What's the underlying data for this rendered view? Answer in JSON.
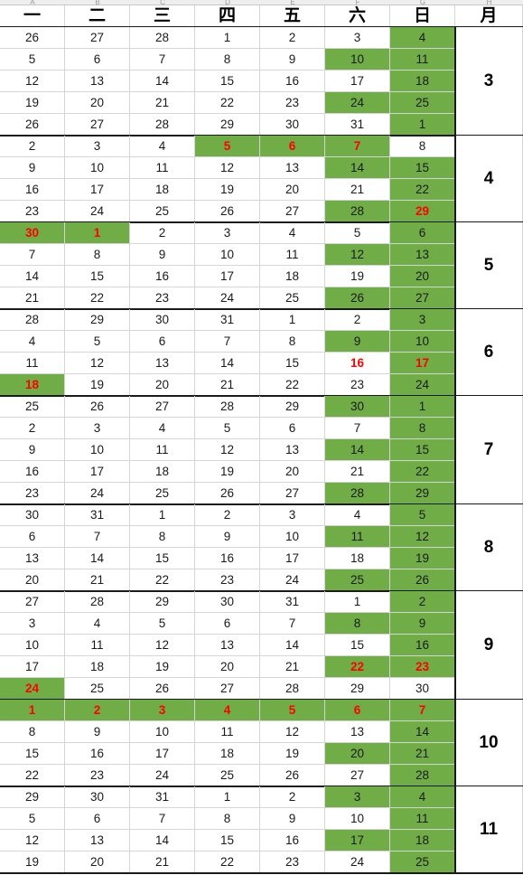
{
  "column_letters": [
    "A",
    "B",
    "C",
    "D",
    "E",
    "F",
    "G",
    "H"
  ],
  "weekday_headers": [
    "一",
    "二",
    "三",
    "四",
    "五",
    "六",
    "日"
  ],
  "month_header": "月",
  "colors": {
    "workday_green": "#70ad47",
    "holiday_red": "#ff0000"
  },
  "blocks": [
    {
      "month": "3",
      "rows": [
        {
          "days": [
            "26",
            "27",
            "28",
            "1",
            "2",
            "3",
            "4"
          ],
          "green": [
            6
          ],
          "holiday": []
        },
        {
          "days": [
            "5",
            "6",
            "7",
            "8",
            "9",
            "10",
            "11"
          ],
          "green": [
            5,
            6
          ],
          "holiday": []
        },
        {
          "days": [
            "12",
            "13",
            "14",
            "15",
            "16",
            "17",
            "18"
          ],
          "green": [
            6
          ],
          "holiday": []
        },
        {
          "days": [
            "19",
            "20",
            "21",
            "22",
            "23",
            "24",
            "25"
          ],
          "green": [
            5,
            6
          ],
          "holiday": []
        },
        {
          "days": [
            "26",
            "27",
            "28",
            "29",
            "30",
            "31",
            "1"
          ],
          "green": [
            6
          ],
          "holiday": []
        }
      ]
    },
    {
      "month": "4",
      "rows": [
        {
          "days": [
            "2",
            "3",
            "4",
            "5",
            "6",
            "7",
            "8"
          ],
          "green": [
            3,
            4,
            5
          ],
          "holiday": [
            3,
            4,
            5
          ]
        },
        {
          "days": [
            "9",
            "10",
            "11",
            "12",
            "13",
            "14",
            "15"
          ],
          "green": [
            5,
            6
          ],
          "holiday": []
        },
        {
          "days": [
            "16",
            "17",
            "18",
            "19",
            "20",
            "21",
            "22"
          ],
          "green": [
            6
          ],
          "holiday": []
        },
        {
          "days": [
            "23",
            "24",
            "25",
            "26",
            "27",
            "28",
            "29"
          ],
          "green": [
            5,
            6
          ],
          "holiday": [
            6
          ]
        }
      ]
    },
    {
      "month": "5",
      "rows": [
        {
          "days": [
            "30",
            "1",
            "2",
            "3",
            "4",
            "5",
            "6"
          ],
          "green": [
            0,
            1,
            6
          ],
          "holiday": [
            0,
            1
          ]
        },
        {
          "days": [
            "7",
            "8",
            "9",
            "10",
            "11",
            "12",
            "13"
          ],
          "green": [
            5,
            6
          ],
          "holiday": []
        },
        {
          "days": [
            "14",
            "15",
            "16",
            "17",
            "18",
            "19",
            "20"
          ],
          "green": [
            6
          ],
          "holiday": []
        },
        {
          "days": [
            "21",
            "22",
            "23",
            "24",
            "25",
            "26",
            "27"
          ],
          "green": [
            5,
            6
          ],
          "holiday": []
        }
      ]
    },
    {
      "month": "6",
      "rows": [
        {
          "days": [
            "28",
            "29",
            "30",
            "31",
            "1",
            "2",
            "3"
          ],
          "green": [
            6
          ],
          "holiday": []
        },
        {
          "days": [
            "4",
            "5",
            "6",
            "7",
            "8",
            "9",
            "10"
          ],
          "green": [
            5,
            6
          ],
          "holiday": []
        },
        {
          "days": [
            "11",
            "12",
            "13",
            "14",
            "15",
            "16",
            "17"
          ],
          "green": [
            6
          ],
          "holiday": [
            5,
            6
          ]
        },
        {
          "days": [
            "18",
            "19",
            "20",
            "21",
            "22",
            "23",
            "24"
          ],
          "green": [
            0,
            6
          ],
          "holiday": [
            0
          ]
        }
      ]
    },
    {
      "month": "7",
      "rows": [
        {
          "days": [
            "25",
            "26",
            "27",
            "28",
            "29",
            "30",
            "1"
          ],
          "green": [
            5,
            6
          ],
          "holiday": []
        },
        {
          "days": [
            "2",
            "3",
            "4",
            "5",
            "6",
            "7",
            "8"
          ],
          "green": [
            6
          ],
          "holiday": []
        },
        {
          "days": [
            "9",
            "10",
            "11",
            "12",
            "13",
            "14",
            "15"
          ],
          "green": [
            5,
            6
          ],
          "holiday": []
        },
        {
          "days": [
            "16",
            "17",
            "18",
            "19",
            "20",
            "21",
            "22"
          ],
          "green": [
            6
          ],
          "holiday": []
        },
        {
          "days": [
            "23",
            "24",
            "25",
            "26",
            "27",
            "28",
            "29"
          ],
          "green": [
            5,
            6
          ],
          "holiday": []
        }
      ]
    },
    {
      "month": "8",
      "rows": [
        {
          "days": [
            "30",
            "31",
            "1",
            "2",
            "3",
            "4",
            "5"
          ],
          "green": [
            6
          ],
          "holiday": []
        },
        {
          "days": [
            "6",
            "7",
            "8",
            "9",
            "10",
            "11",
            "12"
          ],
          "green": [
            5,
            6
          ],
          "holiday": []
        },
        {
          "days": [
            "13",
            "14",
            "15",
            "16",
            "17",
            "18",
            "19"
          ],
          "green": [
            6
          ],
          "holiday": []
        },
        {
          "days": [
            "20",
            "21",
            "22",
            "23",
            "24",
            "25",
            "26"
          ],
          "green": [
            5,
            6
          ],
          "holiday": []
        }
      ]
    },
    {
      "month": "9",
      "rows": [
        {
          "days": [
            "27",
            "28",
            "29",
            "30",
            "31",
            "1",
            "2"
          ],
          "green": [
            6
          ],
          "holiday": []
        },
        {
          "days": [
            "3",
            "4",
            "5",
            "6",
            "7",
            "8",
            "9"
          ],
          "green": [
            5,
            6
          ],
          "holiday": []
        },
        {
          "days": [
            "10",
            "11",
            "12",
            "13",
            "14",
            "15",
            "16"
          ],
          "green": [
            6
          ],
          "holiday": []
        },
        {
          "days": [
            "17",
            "18",
            "19",
            "20",
            "21",
            "22",
            "23"
          ],
          "green": [
            5,
            6
          ],
          "holiday": [
            5,
            6
          ]
        },
        {
          "days": [
            "24",
            "25",
            "26",
            "27",
            "28",
            "29",
            "30"
          ],
          "green": [
            0
          ],
          "holiday": [
            0
          ]
        }
      ]
    },
    {
      "month": "10",
      "rows": [
        {
          "days": [
            "1",
            "2",
            "3",
            "4",
            "5",
            "6",
            "7"
          ],
          "green": [
            0,
            1,
            2,
            3,
            4,
            5,
            6
          ],
          "holiday": [
            0,
            1,
            2,
            3,
            4,
            5,
            6
          ]
        },
        {
          "days": [
            "8",
            "9",
            "10",
            "11",
            "12",
            "13",
            "14"
          ],
          "green": [
            6
          ],
          "holiday": []
        },
        {
          "days": [
            "15",
            "16",
            "17",
            "18",
            "19",
            "20",
            "21"
          ],
          "green": [
            5,
            6
          ],
          "holiday": []
        },
        {
          "days": [
            "22",
            "23",
            "24",
            "25",
            "26",
            "27",
            "28"
          ],
          "green": [
            6
          ],
          "holiday": []
        }
      ]
    },
    {
      "month": "11",
      "rows": [
        {
          "days": [
            "29",
            "30",
            "31",
            "1",
            "2",
            "3",
            "4"
          ],
          "green": [
            5,
            6
          ],
          "holiday": []
        },
        {
          "days": [
            "5",
            "6",
            "7",
            "8",
            "9",
            "10",
            "11"
          ],
          "green": [
            6
          ],
          "holiday": []
        },
        {
          "days": [
            "12",
            "13",
            "14",
            "15",
            "16",
            "17",
            "18"
          ],
          "green": [
            5,
            6
          ],
          "holiday": []
        },
        {
          "days": [
            "19",
            "20",
            "21",
            "22",
            "23",
            "24",
            "25"
          ],
          "green": [
            6
          ],
          "holiday": []
        }
      ]
    }
  ]
}
